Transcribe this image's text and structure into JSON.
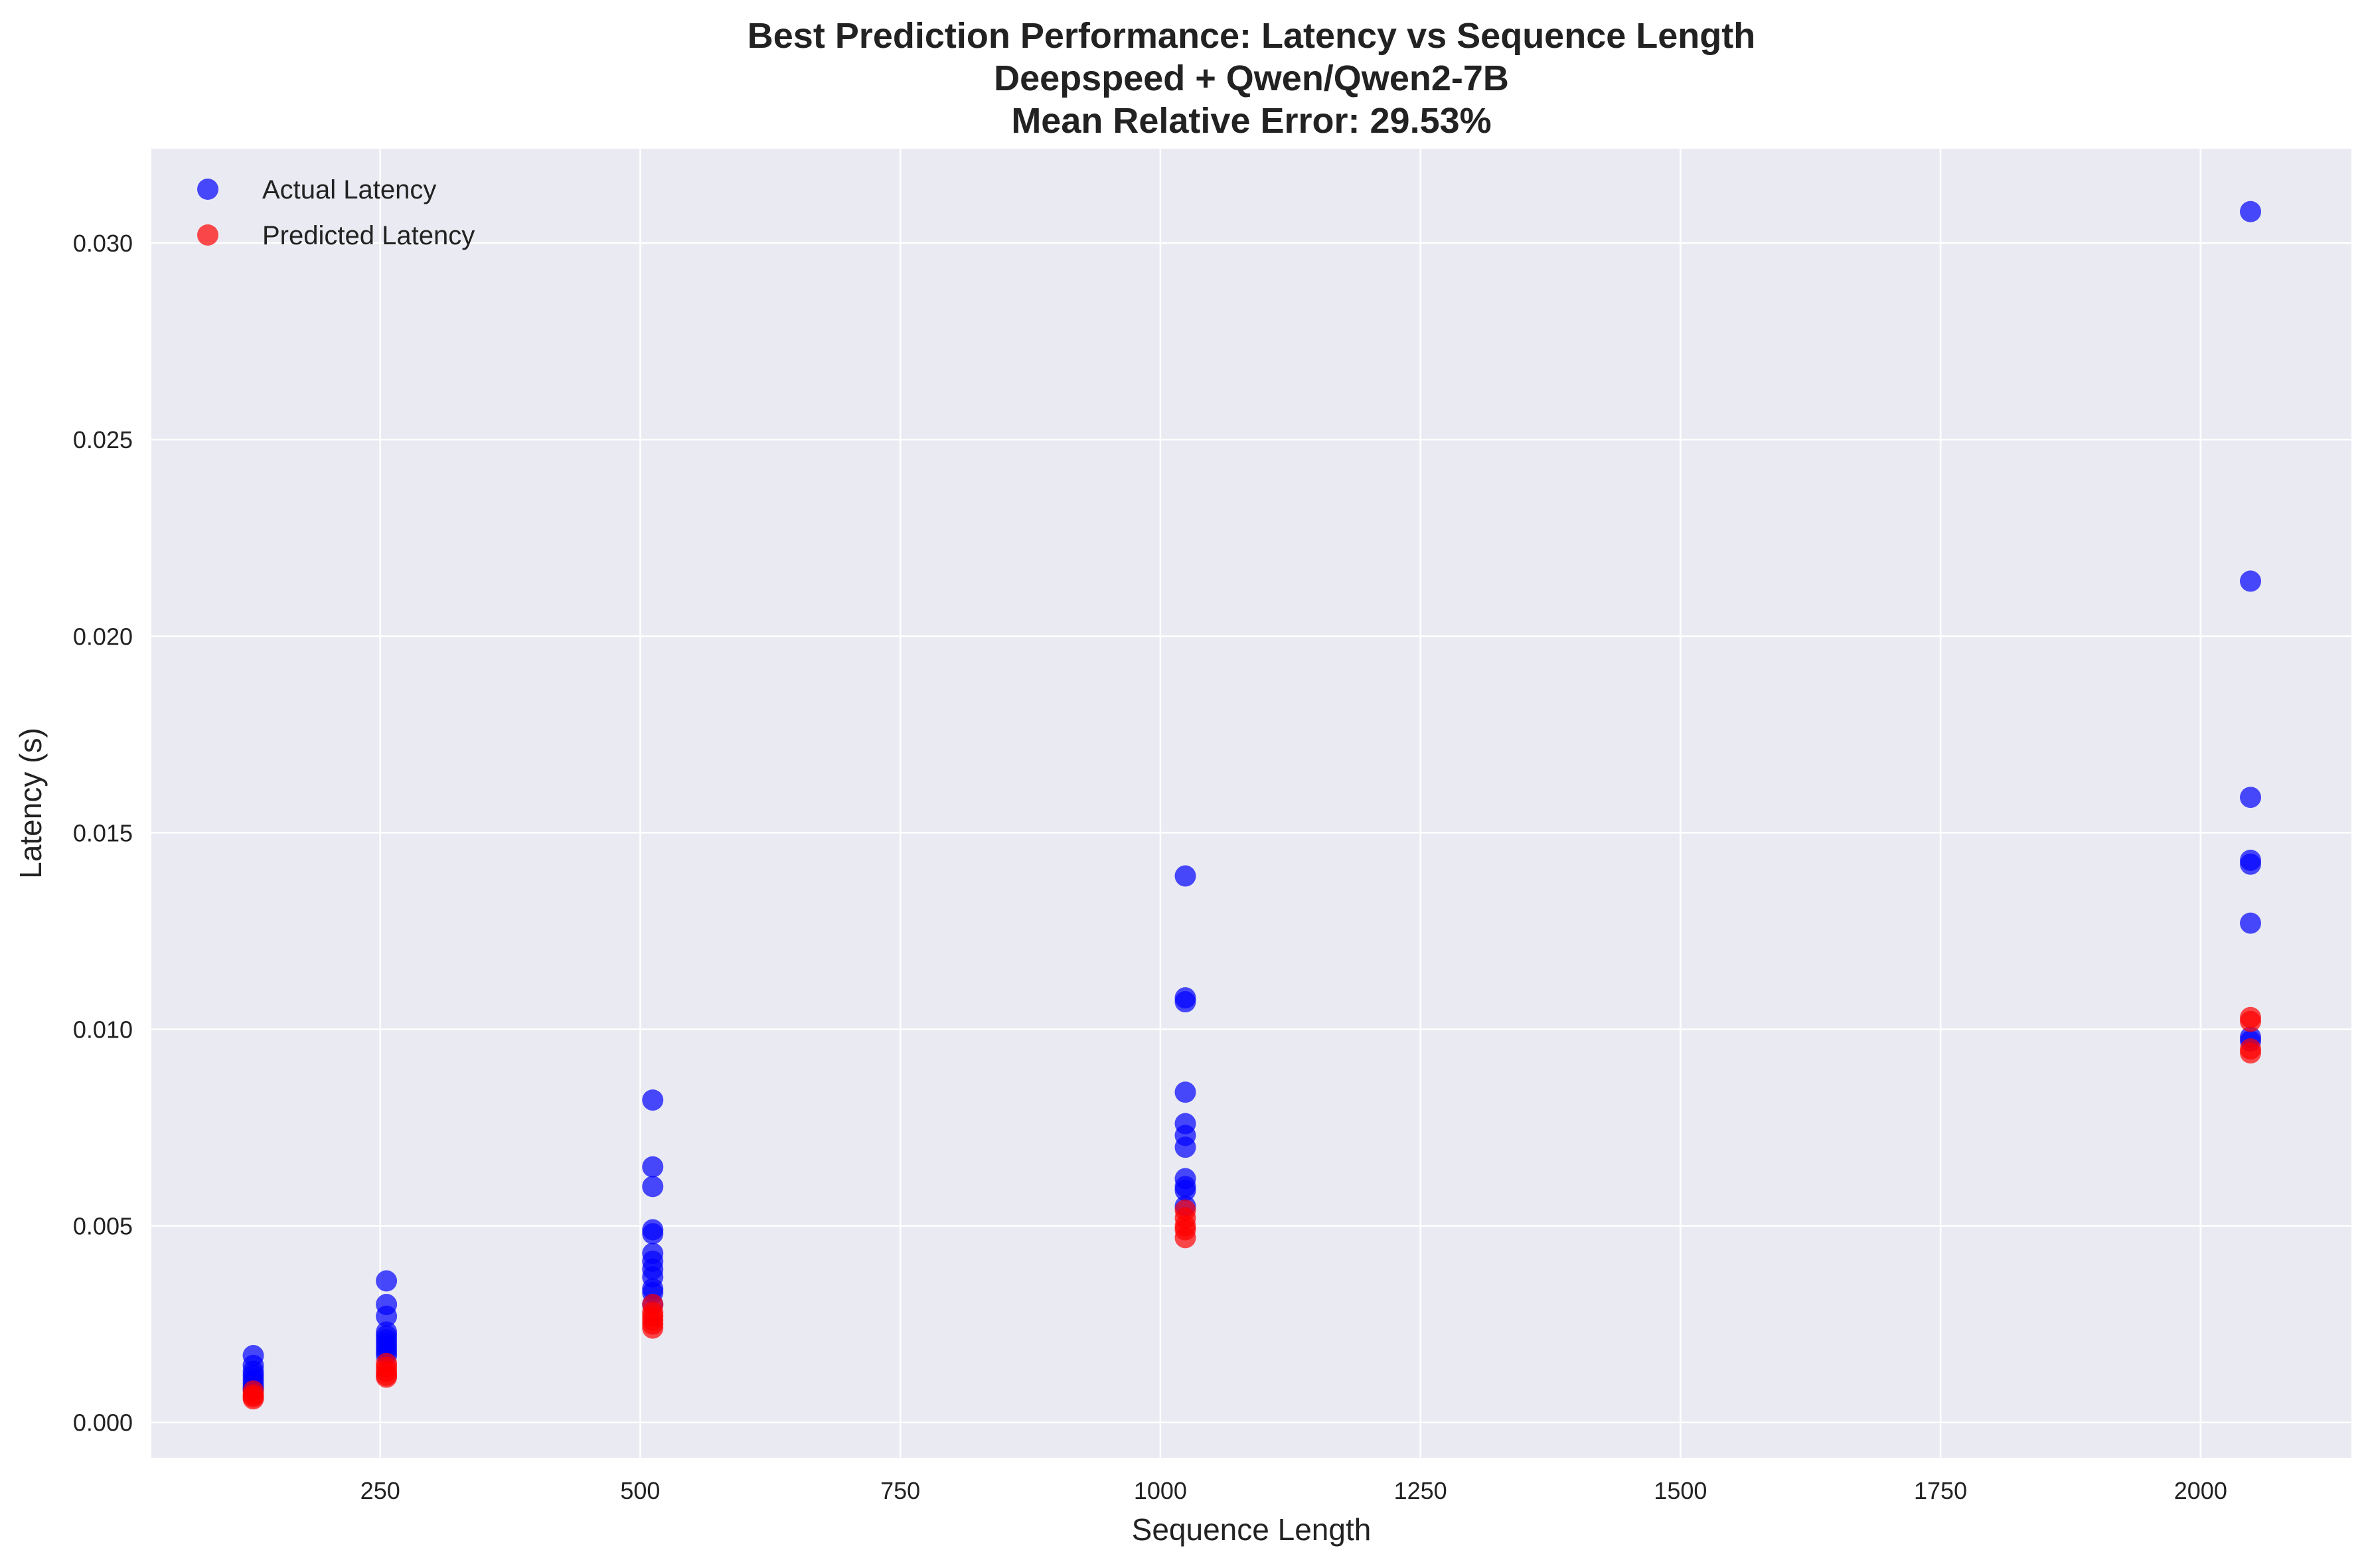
{
  "chart_data": {
    "type": "scatter",
    "title_lines": [
      "Best Prediction Performance: Latency vs Sequence Length",
      "Deepspeed + Qwen/Qwen2-7B",
      "Mean Relative Error: 29.53%"
    ],
    "xlabel": "Sequence Length",
    "ylabel": "Latency (s)",
    "xlim": [
      30,
      2145
    ],
    "ylim": [
      -0.0009,
      0.0324
    ],
    "x_ticks": [
      250,
      500,
      750,
      1000,
      1250,
      1500,
      1750,
      2000
    ],
    "x_tick_labels": [
      "250",
      "500",
      "750",
      "1000",
      "1250",
      "1500",
      "1750",
      "2000"
    ],
    "y_ticks": [
      0.0,
      0.005,
      0.01,
      0.015,
      0.02,
      0.025,
      0.03
    ],
    "y_tick_labels": [
      "0.000",
      "0.005",
      "0.010",
      "0.015",
      "0.020",
      "0.025",
      "0.030"
    ],
    "grid": true,
    "legend_position": "top-left",
    "background": "#eaeaf2",
    "series": [
      {
        "name": "Actual Latency",
        "color": "#0000ff",
        "x": [
          128,
          128,
          128,
          128,
          128,
          128,
          128,
          128,
          256,
          256,
          256,
          256,
          256,
          256,
          256,
          256,
          256,
          256,
          512,
          512,
          512,
          512,
          512,
          512,
          512,
          512,
          512,
          512,
          512,
          512,
          1024,
          1024,
          1024,
          1024,
          1024,
          1024,
          1024,
          1024,
          1024,
          1024,
          1024,
          2048,
          2048,
          2048,
          2048,
          2048,
          2048,
          2048,
          2048
        ],
        "y": [
          0.0017,
          0.00145,
          0.0013,
          0.0012,
          0.0011,
          0.001,
          0.0009,
          0.00085,
          0.0036,
          0.003,
          0.0027,
          0.0023,
          0.0022,
          0.0021,
          0.002,
          0.0019,
          0.0018,
          0.0017,
          0.0082,
          0.0065,
          0.006,
          0.0049,
          0.0048,
          0.0043,
          0.0041,
          0.0039,
          0.0037,
          0.0034,
          0.0033,
          0.003,
          0.0139,
          0.0108,
          0.0107,
          0.0084,
          0.0076,
          0.0073,
          0.007,
          0.0062,
          0.006,
          0.0059,
          0.0055,
          0.0308,
          0.0214,
          0.0159,
          0.0143,
          0.0142,
          0.0127,
          0.0098,
          0.0097
        ]
      },
      {
        "name": "Predicted Latency",
        "color": "#ff0000",
        "x": [
          128,
          128,
          128,
          128,
          256,
          256,
          256,
          256,
          256,
          512,
          512,
          512,
          512,
          512,
          512,
          1024,
          1024,
          1024,
          1024,
          1024,
          2048,
          2048,
          2048,
          2048
        ],
        "y": [
          0.0008,
          0.0007,
          0.00065,
          0.0006,
          0.0015,
          0.0014,
          0.0013,
          0.0012,
          0.00115,
          0.003,
          0.0028,
          0.0027,
          0.0026,
          0.0025,
          0.0024,
          0.0054,
          0.0052,
          0.005,
          0.0049,
          0.0047,
          0.0103,
          0.0102,
          0.0095,
          0.0094
        ]
      }
    ]
  }
}
